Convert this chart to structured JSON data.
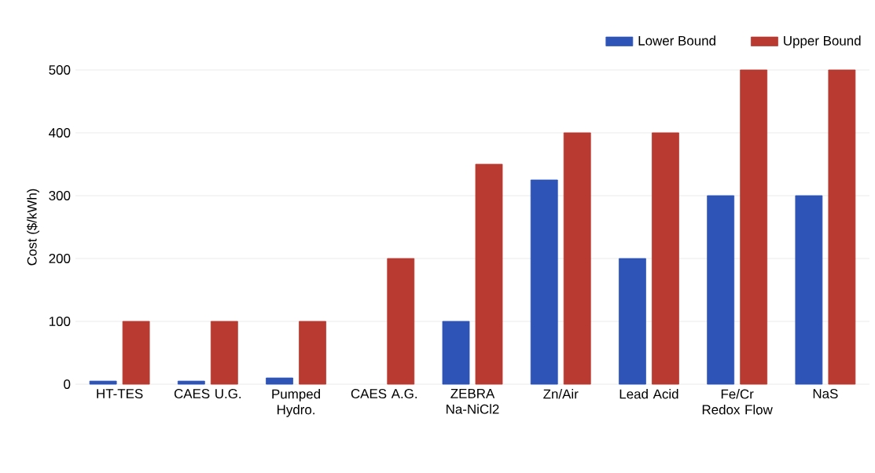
{
  "chart_data": {
    "type": "bar",
    "ylabel": "Cost ($/kWh)",
    "categories": [
      "HT-TES",
      "CAES U.G.",
      "Pumped Hydro.",
      "CAES A.G.",
      "ZEBRA Na-NiCl2",
      "Zn/Air",
      "Lead Acid",
      "Fe/Cr Redox Flow",
      "NaS"
    ],
    "series": [
      {
        "name": "Lower Bound",
        "color": "#2e54b8",
        "values": [
          5,
          5,
          10,
          null,
          100,
          325,
          200,
          300,
          300
        ]
      },
      {
        "name": "Upper Bound",
        "color": "#b83a30",
        "values": [
          100,
          100,
          100,
          200,
          350,
          400,
          400,
          500,
          500
        ]
      }
    ],
    "ylim": [
      0,
      500
    ],
    "yticks": [
      0,
      100,
      200,
      300,
      400,
      500
    ],
    "grid": "y",
    "legend": "top right"
  }
}
